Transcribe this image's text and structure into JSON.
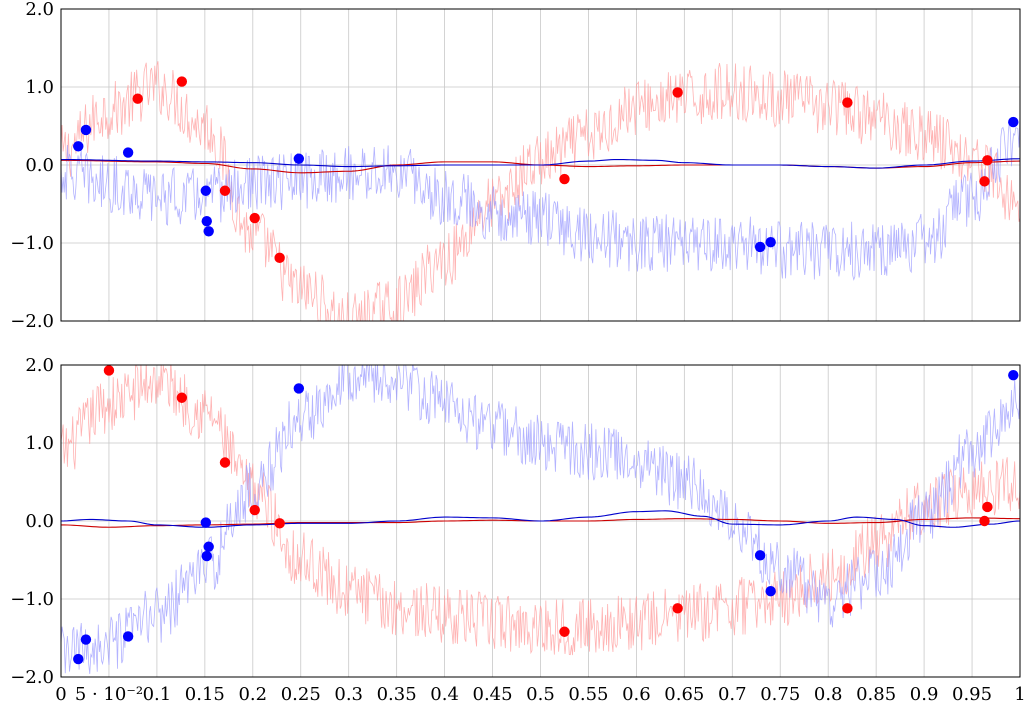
{
  "chart_data": [
    {
      "type": "scatter",
      "title": "",
      "xlabel": "",
      "ylabel": "",
      "xlim": [
        0,
        1
      ],
      "ylim": [
        -2.0,
        2.0
      ],
      "grid": true,
      "x_ticks": [
        "0",
        "5 · 10⁻²",
        "0.1",
        "0.15",
        "0.2",
        "0.25",
        "0.3",
        "0.35",
        "0.4",
        "0.45",
        "0.5",
        "0.55",
        "0.6",
        "0.65",
        "0.7",
        "0.75",
        "0.8",
        "0.85",
        "0.9",
        "0.95",
        "1"
      ],
      "x_tick_labels_shown": false,
      "y_ticks": [
        "−2.0",
        "−1.0",
        "0.0",
        "1.0",
        "2.0"
      ],
      "series": [
        {
          "kind": "noisy-line",
          "color": "#ff9999",
          "values": [
            [
              0.0,
              0.15
            ],
            [
              0.05,
              0.7
            ],
            [
              0.1,
              1.0
            ],
            [
              0.15,
              0.5
            ],
            [
              0.2,
              -0.9
            ],
            [
              0.25,
              -1.6
            ],
            [
              0.3,
              -2.0
            ],
            [
              0.35,
              -1.8
            ],
            [
              0.4,
              -1.2
            ],
            [
              0.45,
              -0.5
            ],
            [
              0.5,
              0.05
            ],
            [
              0.55,
              0.35
            ],
            [
              0.6,
              0.75
            ],
            [
              0.65,
              0.85
            ],
            [
              0.7,
              0.95
            ],
            [
              0.75,
              0.85
            ],
            [
              0.8,
              0.75
            ],
            [
              0.85,
              0.6
            ],
            [
              0.9,
              0.4
            ],
            [
              0.95,
              0.1
            ],
            [
              1.0,
              -0.5
            ]
          ]
        },
        {
          "kind": "noisy-line",
          "color": "#9999ff",
          "values": [
            [
              0.0,
              -0.1
            ],
            [
              0.05,
              -0.25
            ],
            [
              0.1,
              -0.4
            ],
            [
              0.15,
              -0.4
            ],
            [
              0.2,
              -0.25
            ],
            [
              0.25,
              -0.2
            ],
            [
              0.3,
              -0.1
            ],
            [
              0.35,
              -0.1
            ],
            [
              0.4,
              -0.4
            ],
            [
              0.45,
              -0.6
            ],
            [
              0.5,
              -0.7
            ],
            [
              0.55,
              -0.9
            ],
            [
              0.6,
              -1.0
            ],
            [
              0.65,
              -1.0
            ],
            [
              0.7,
              -1.0
            ],
            [
              0.75,
              -1.1
            ],
            [
              0.8,
              -1.1
            ],
            [
              0.85,
              -1.1
            ],
            [
              0.9,
              -1.0
            ],
            [
              0.95,
              -0.4
            ],
            [
              1.0,
              0.4
            ]
          ]
        },
        {
          "kind": "smooth-line",
          "color": "#cc0000",
          "values": [
            [
              0.0,
              0.06
            ],
            [
              0.1,
              0.04
            ],
            [
              0.15,
              0.02
            ],
            [
              0.2,
              -0.05
            ],
            [
              0.25,
              -0.1
            ],
            [
              0.3,
              -0.08
            ],
            [
              0.35,
              0.0
            ],
            [
              0.4,
              0.04
            ],
            [
              0.45,
              0.04
            ],
            [
              0.5,
              0.0
            ],
            [
              0.55,
              -0.02
            ],
            [
              0.6,
              -0.01
            ],
            [
              0.65,
              0.0
            ],
            [
              0.7,
              0.0
            ],
            [
              0.75,
              0.0
            ],
            [
              0.8,
              -0.02
            ],
            [
              0.85,
              -0.04
            ],
            [
              0.9,
              -0.02
            ],
            [
              0.95,
              0.03
            ],
            [
              1.0,
              0.05
            ]
          ]
        },
        {
          "kind": "smooth-line",
          "color": "#0000cc",
          "values": [
            [
              0.0,
              0.07
            ],
            [
              0.1,
              0.05
            ],
            [
              0.15,
              0.04
            ],
            [
              0.2,
              0.03
            ],
            [
              0.25,
              0.0
            ],
            [
              0.3,
              -0.02
            ],
            [
              0.35,
              -0.01
            ],
            [
              0.4,
              0.0
            ],
            [
              0.45,
              0.0
            ],
            [
              0.5,
              0.0
            ],
            [
              0.55,
              0.05
            ],
            [
              0.58,
              0.07
            ],
            [
              0.62,
              0.06
            ],
            [
              0.65,
              0.03
            ],
            [
              0.7,
              0.0
            ],
            [
              0.75,
              0.0
            ],
            [
              0.8,
              -0.02
            ],
            [
              0.85,
              -0.04
            ],
            [
              0.9,
              0.0
            ],
            [
              0.95,
              0.05
            ],
            [
              1.0,
              0.08
            ]
          ]
        },
        {
          "kind": "points",
          "color": "#ff0000",
          "values": [
            [
              0.08,
              0.85
            ],
            [
              0.126,
              1.07
            ],
            [
              0.171,
              -0.33
            ],
            [
              0.202,
              -0.68
            ],
            [
              0.228,
              -1.19
            ],
            [
              0.525,
              -0.18
            ],
            [
              0.643,
              0.93
            ],
            [
              0.82,
              0.8
            ],
            [
              0.963,
              -0.21
            ],
            [
              0.966,
              0.06
            ]
          ]
        },
        {
          "kind": "points",
          "color": "#0000ff",
          "values": [
            [
              0.018,
              0.24
            ],
            [
              0.026,
              0.45
            ],
            [
              0.07,
              0.16
            ],
            [
              0.151,
              -0.33
            ],
            [
              0.152,
              -0.72
            ],
            [
              0.154,
              -0.85
            ],
            [
              0.248,
              0.08
            ],
            [
              0.729,
              -1.05
            ],
            [
              0.74,
              -0.99
            ],
            [
              0.993,
              0.55
            ]
          ]
        }
      ]
    },
    {
      "type": "scatter",
      "title": "",
      "xlabel": "",
      "ylabel": "",
      "xlim": [
        0,
        1
      ],
      "ylim": [
        -2.0,
        2.0
      ],
      "grid": true,
      "x_ticks": [
        "0",
        "5 · 10⁻²",
        "0.1",
        "0.15",
        "0.2",
        "0.25",
        "0.3",
        "0.35",
        "0.4",
        "0.45",
        "0.5",
        "0.55",
        "0.6",
        "0.65",
        "0.7",
        "0.75",
        "0.8",
        "0.85",
        "0.9",
        "0.95",
        "1"
      ],
      "x_tick_labels_shown": true,
      "y_ticks": [
        "−2.0",
        "−1.0",
        "0.0",
        "1.0",
        "2.0"
      ],
      "series": [
        {
          "kind": "noisy-line",
          "color": "#ff9999",
          "values": [
            [
              0.0,
              0.9
            ],
            [
              0.05,
              1.5
            ],
            [
              0.1,
              1.8
            ],
            [
              0.15,
              1.4
            ],
            [
              0.2,
              0.4
            ],
            [
              0.25,
              -0.5
            ],
            [
              0.3,
              -0.9
            ],
            [
              0.35,
              -1.1
            ],
            [
              0.4,
              -1.2
            ],
            [
              0.45,
              -1.3
            ],
            [
              0.5,
              -1.35
            ],
            [
              0.55,
              -1.35
            ],
            [
              0.6,
              -1.3
            ],
            [
              0.65,
              -1.2
            ],
            [
              0.7,
              -1.1
            ],
            [
              0.75,
              -1.0
            ],
            [
              0.8,
              -0.7
            ],
            [
              0.85,
              -0.3
            ],
            [
              0.9,
              0.2
            ],
            [
              0.95,
              0.4
            ],
            [
              1.0,
              0.5
            ]
          ]
        },
        {
          "kind": "noisy-line",
          "color": "#9999ff",
          "values": [
            [
              0.0,
              -1.7
            ],
            [
              0.05,
              -1.6
            ],
            [
              0.1,
              -1.2
            ],
            [
              0.15,
              -0.6
            ],
            [
              0.2,
              0.4
            ],
            [
              0.25,
              1.3
            ],
            [
              0.3,
              1.9
            ],
            [
              0.35,
              1.8
            ],
            [
              0.4,
              1.5
            ],
            [
              0.45,
              1.2
            ],
            [
              0.5,
              1.0
            ],
            [
              0.55,
              0.9
            ],
            [
              0.6,
              0.8
            ],
            [
              0.65,
              0.5
            ],
            [
              0.7,
              0.0
            ],
            [
              0.75,
              -0.6
            ],
            [
              0.8,
              -1.0
            ],
            [
              0.85,
              -0.7
            ],
            [
              0.9,
              0.0
            ],
            [
              0.95,
              0.9
            ],
            [
              1.0,
              1.6
            ]
          ]
        },
        {
          "kind": "smooth-line",
          "color": "#cc0000",
          "values": [
            [
              0.0,
              -0.05
            ],
            [
              0.05,
              -0.08
            ],
            [
              0.1,
              -0.06
            ],
            [
              0.15,
              -0.05
            ],
            [
              0.2,
              -0.04
            ],
            [
              0.25,
              -0.02
            ],
            [
              0.3,
              -0.02
            ],
            [
              0.35,
              -0.02
            ],
            [
              0.4,
              0.0
            ],
            [
              0.45,
              0.01
            ],
            [
              0.5,
              0.0
            ],
            [
              0.55,
              0.0
            ],
            [
              0.6,
              0.02
            ],
            [
              0.65,
              0.03
            ],
            [
              0.7,
              0.02
            ],
            [
              0.75,
              0.0
            ],
            [
              0.8,
              -0.03
            ],
            [
              0.85,
              -0.02
            ],
            [
              0.9,
              0.02
            ],
            [
              0.95,
              0.04
            ],
            [
              1.0,
              0.03
            ]
          ]
        },
        {
          "kind": "smooth-line",
          "color": "#0000cc",
          "values": [
            [
              0.0,
              0.0
            ],
            [
              0.03,
              0.02
            ],
            [
              0.07,
              0.0
            ],
            [
              0.1,
              -0.05
            ],
            [
              0.15,
              -0.08
            ],
            [
              0.2,
              -0.05
            ],
            [
              0.25,
              -0.03
            ],
            [
              0.3,
              -0.03
            ],
            [
              0.35,
              0.0
            ],
            [
              0.4,
              0.05
            ],
            [
              0.45,
              0.04
            ],
            [
              0.5,
              0.0
            ],
            [
              0.55,
              0.05
            ],
            [
              0.6,
              0.12
            ],
            [
              0.63,
              0.13
            ],
            [
              0.67,
              0.06
            ],
            [
              0.7,
              -0.04
            ],
            [
              0.75,
              -0.05
            ],
            [
              0.8,
              0.0
            ],
            [
              0.83,
              0.05
            ],
            [
              0.87,
              0.02
            ],
            [
              0.9,
              -0.06
            ],
            [
              0.93,
              -0.08
            ],
            [
              0.97,
              -0.04
            ],
            [
              1.0,
              0.0
            ]
          ]
        },
        {
          "kind": "points",
          "color": "#ff0000",
          "values": [
            [
              0.05,
              1.93
            ],
            [
              0.126,
              1.58
            ],
            [
              0.171,
              0.75
            ],
            [
              0.202,
              0.14
            ],
            [
              0.228,
              -0.03
            ],
            [
              0.525,
              -1.42
            ],
            [
              0.643,
              -1.12
            ],
            [
              0.82,
              -1.12
            ],
            [
              0.963,
              0.0
            ],
            [
              0.966,
              0.18
            ]
          ]
        },
        {
          "kind": "points",
          "color": "#0000ff",
          "values": [
            [
              0.018,
              -1.77
            ],
            [
              0.026,
              -1.52
            ],
            [
              0.07,
              -1.48
            ],
            [
              0.151,
              -0.02
            ],
            [
              0.152,
              -0.45
            ],
            [
              0.154,
              -0.33
            ],
            [
              0.248,
              1.7
            ],
            [
              0.729,
              -0.44
            ],
            [
              0.74,
              -0.9
            ],
            [
              0.993,
              1.87
            ]
          ]
        }
      ]
    }
  ]
}
